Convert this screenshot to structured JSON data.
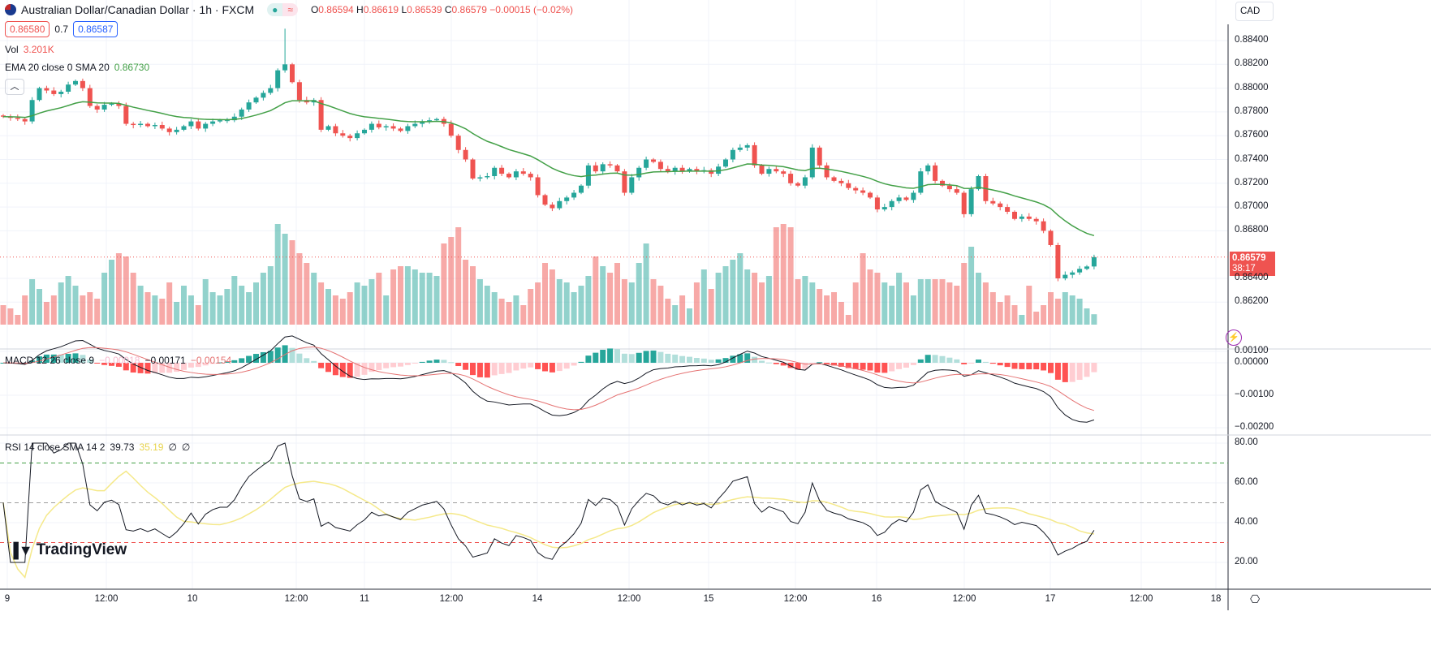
{
  "header": {
    "title": "Australian Dollar/Canadian Dollar · 1h · FXCM",
    "flag_icon": "aud-flag-icon",
    "market_open_icon": "green-dot-icon",
    "delayed_icon": "wave-icon",
    "ohlc": {
      "o_label": "O",
      "o": "0.86594",
      "h_label": "H",
      "h": "0.86619",
      "l_label": "L",
      "l": "0.86539",
      "c_label": "C",
      "c": "0.86579",
      "change": "−0.00015 (−0.02%)"
    },
    "sell_price": "0.86580",
    "spread": "0.7",
    "buy_price": "0.86587"
  },
  "legends": {
    "vol": {
      "label": "Vol",
      "value": "3.201K"
    },
    "ema": {
      "label": "EMA 20 close 0 SMA 20",
      "value": "0.86730"
    },
    "macd": {
      "label": "MACD 12 26 close 9",
      "hist": "−0.00018",
      "macd": "−0.00171",
      "signal": "−0.00154"
    },
    "rsi": {
      "label": "RSI 14 close SMA 14 2",
      "rsi": "39.73",
      "sma": "35.19",
      "extra1": "∅",
      "extra2": "∅"
    }
  },
  "currency_select": "CAD",
  "last_price_label": {
    "price": "0.86579",
    "countdown": "38:17"
  },
  "price_axis": [
    "0.88400",
    "0.88200",
    "0.88000",
    "0.87800",
    "0.87600",
    "0.87400",
    "0.87200",
    "0.87000",
    "0.86800",
    "0.86400",
    "0.86200"
  ],
  "macd_axis": [
    "0.00100",
    "0.00000",
    "−0.00100",
    "−0.00200"
  ],
  "rsi_axis": [
    "80.00",
    "60.00",
    "40.00",
    "20.00"
  ],
  "time_axis": [
    "9",
    "12:00",
    "10",
    "12:00",
    "11",
    "12:00",
    "14",
    "12:00",
    "15",
    "12:00",
    "16",
    "12:00",
    "17",
    "12:00",
    "18"
  ],
  "logo": "TradingView",
  "colors": {
    "up": "#26a69a",
    "down": "#ef5350",
    "ema": "#43a047",
    "macd": "#131722",
    "signal": "#e57373",
    "rsi": "#131722",
    "rsi_sma": "#f5e98a",
    "accent": "#2962ff"
  },
  "chart_data": {
    "type": "candlestick",
    "symbol": "AUDCAD",
    "interval": "1h",
    "first_open": 0.8777,
    "notable_high": {
      "index": 39,
      "value": 0.885
    },
    "close": [
      0.8776,
      0.8775,
      0.8774,
      0.8772,
      0.879,
      0.88,
      0.8798,
      0.8795,
      0.8797,
      0.8803,
      0.8806,
      0.88,
      0.8785,
      0.8782,
      0.8786,
      0.8787,
      0.8785,
      0.877,
      0.8769,
      0.877,
      0.8768,
      0.8769,
      0.8766,
      0.8763,
      0.8765,
      0.8768,
      0.8772,
      0.8766,
      0.877,
      0.8772,
      0.8773,
      0.8773,
      0.8776,
      0.8782,
      0.8788,
      0.8792,
      0.8796,
      0.88,
      0.8815,
      0.882,
      0.8805,
      0.879,
      0.8788,
      0.879,
      0.8765,
      0.8768,
      0.8762,
      0.876,
      0.8758,
      0.8762,
      0.8765,
      0.877,
      0.8767,
      0.8768,
      0.8766,
      0.8764,
      0.8768,
      0.877,
      0.8772,
      0.8773,
      0.8774,
      0.877,
      0.876,
      0.8748,
      0.874,
      0.8724,
      0.8725,
      0.8726,
      0.8733,
      0.8728,
      0.8725,
      0.873,
      0.8728,
      0.8725,
      0.871,
      0.8702,
      0.8699,
      0.8705,
      0.8708,
      0.8712,
      0.8718,
      0.8735,
      0.873,
      0.8736,
      0.8735,
      0.873,
      0.8712,
      0.8725,
      0.8733,
      0.874,
      0.8738,
      0.8732,
      0.873,
      0.8733,
      0.873,
      0.8732,
      0.873,
      0.8731,
      0.8728,
      0.8734,
      0.874,
      0.8748,
      0.875,
      0.8752,
      0.8735,
      0.8728,
      0.8732,
      0.873,
      0.8728,
      0.872,
      0.8718,
      0.8725,
      0.875,
      0.8735,
      0.8725,
      0.8722,
      0.872,
      0.8716,
      0.8714,
      0.8712,
      0.8708,
      0.8698,
      0.87,
      0.8705,
      0.8708,
      0.8706,
      0.8712,
      0.873,
      0.8735,
      0.8722,
      0.8718,
      0.8715,
      0.8712,
      0.8694,
      0.8715,
      0.8726,
      0.8705,
      0.8703,
      0.87,
      0.8696,
      0.869,
      0.8692,
      0.869,
      0.8688,
      0.868,
      0.8668,
      0.864,
      0.8643,
      0.8645,
      0.8648,
      0.865,
      0.86579
    ],
    "volume_k": [
      6,
      5,
      3,
      9,
      14,
      11,
      7,
      9,
      13,
      15,
      12,
      9,
      10,
      8,
      16,
      20,
      22,
      21,
      16,
      12,
      10,
      9,
      8,
      13,
      7,
      12,
      9,
      6,
      14,
      10,
      9,
      11,
      15,
      12,
      10,
      13,
      16,
      18,
      31,
      28,
      26,
      22,
      19,
      16,
      13,
      11,
      9,
      8,
      10,
      13,
      12,
      14,
      16,
      9,
      17,
      18,
      18,
      17,
      16,
      16,
      15,
      25,
      27,
      30,
      20,
      18,
      14,
      12,
      10,
      8,
      7,
      9,
      6,
      11,
      13,
      19,
      17,
      14,
      13,
      10,
      12,
      15,
      21,
      18,
      16,
      19,
      14,
      13,
      19,
      25,
      14,
      12,
      8,
      6,
      9,
      5,
      13,
      17,
      11,
      16,
      18,
      20,
      22,
      17,
      16,
      13,
      15,
      30,
      31,
      30,
      14,
      15,
      13,
      11,
      9,
      10,
      7,
      3,
      13,
      22,
      17,
      16,
      13,
      12,
      16,
      13,
      9,
      14,
      14,
      14,
      14,
      13,
      12,
      19,
      24,
      16,
      13,
      10,
      7,
      9,
      6,
      3,
      12,
      4,
      6,
      10,
      8,
      10,
      9,
      8,
      5,
      3.201
    ],
    "price_range": [
      0.862,
      0.885
    ],
    "macd_range": [
      -0.002,
      0.001
    ],
    "rsi_range": [
      20,
      80
    ],
    "rsi_levels": [
      70,
      50,
      30
    ],
    "grid": true
  }
}
